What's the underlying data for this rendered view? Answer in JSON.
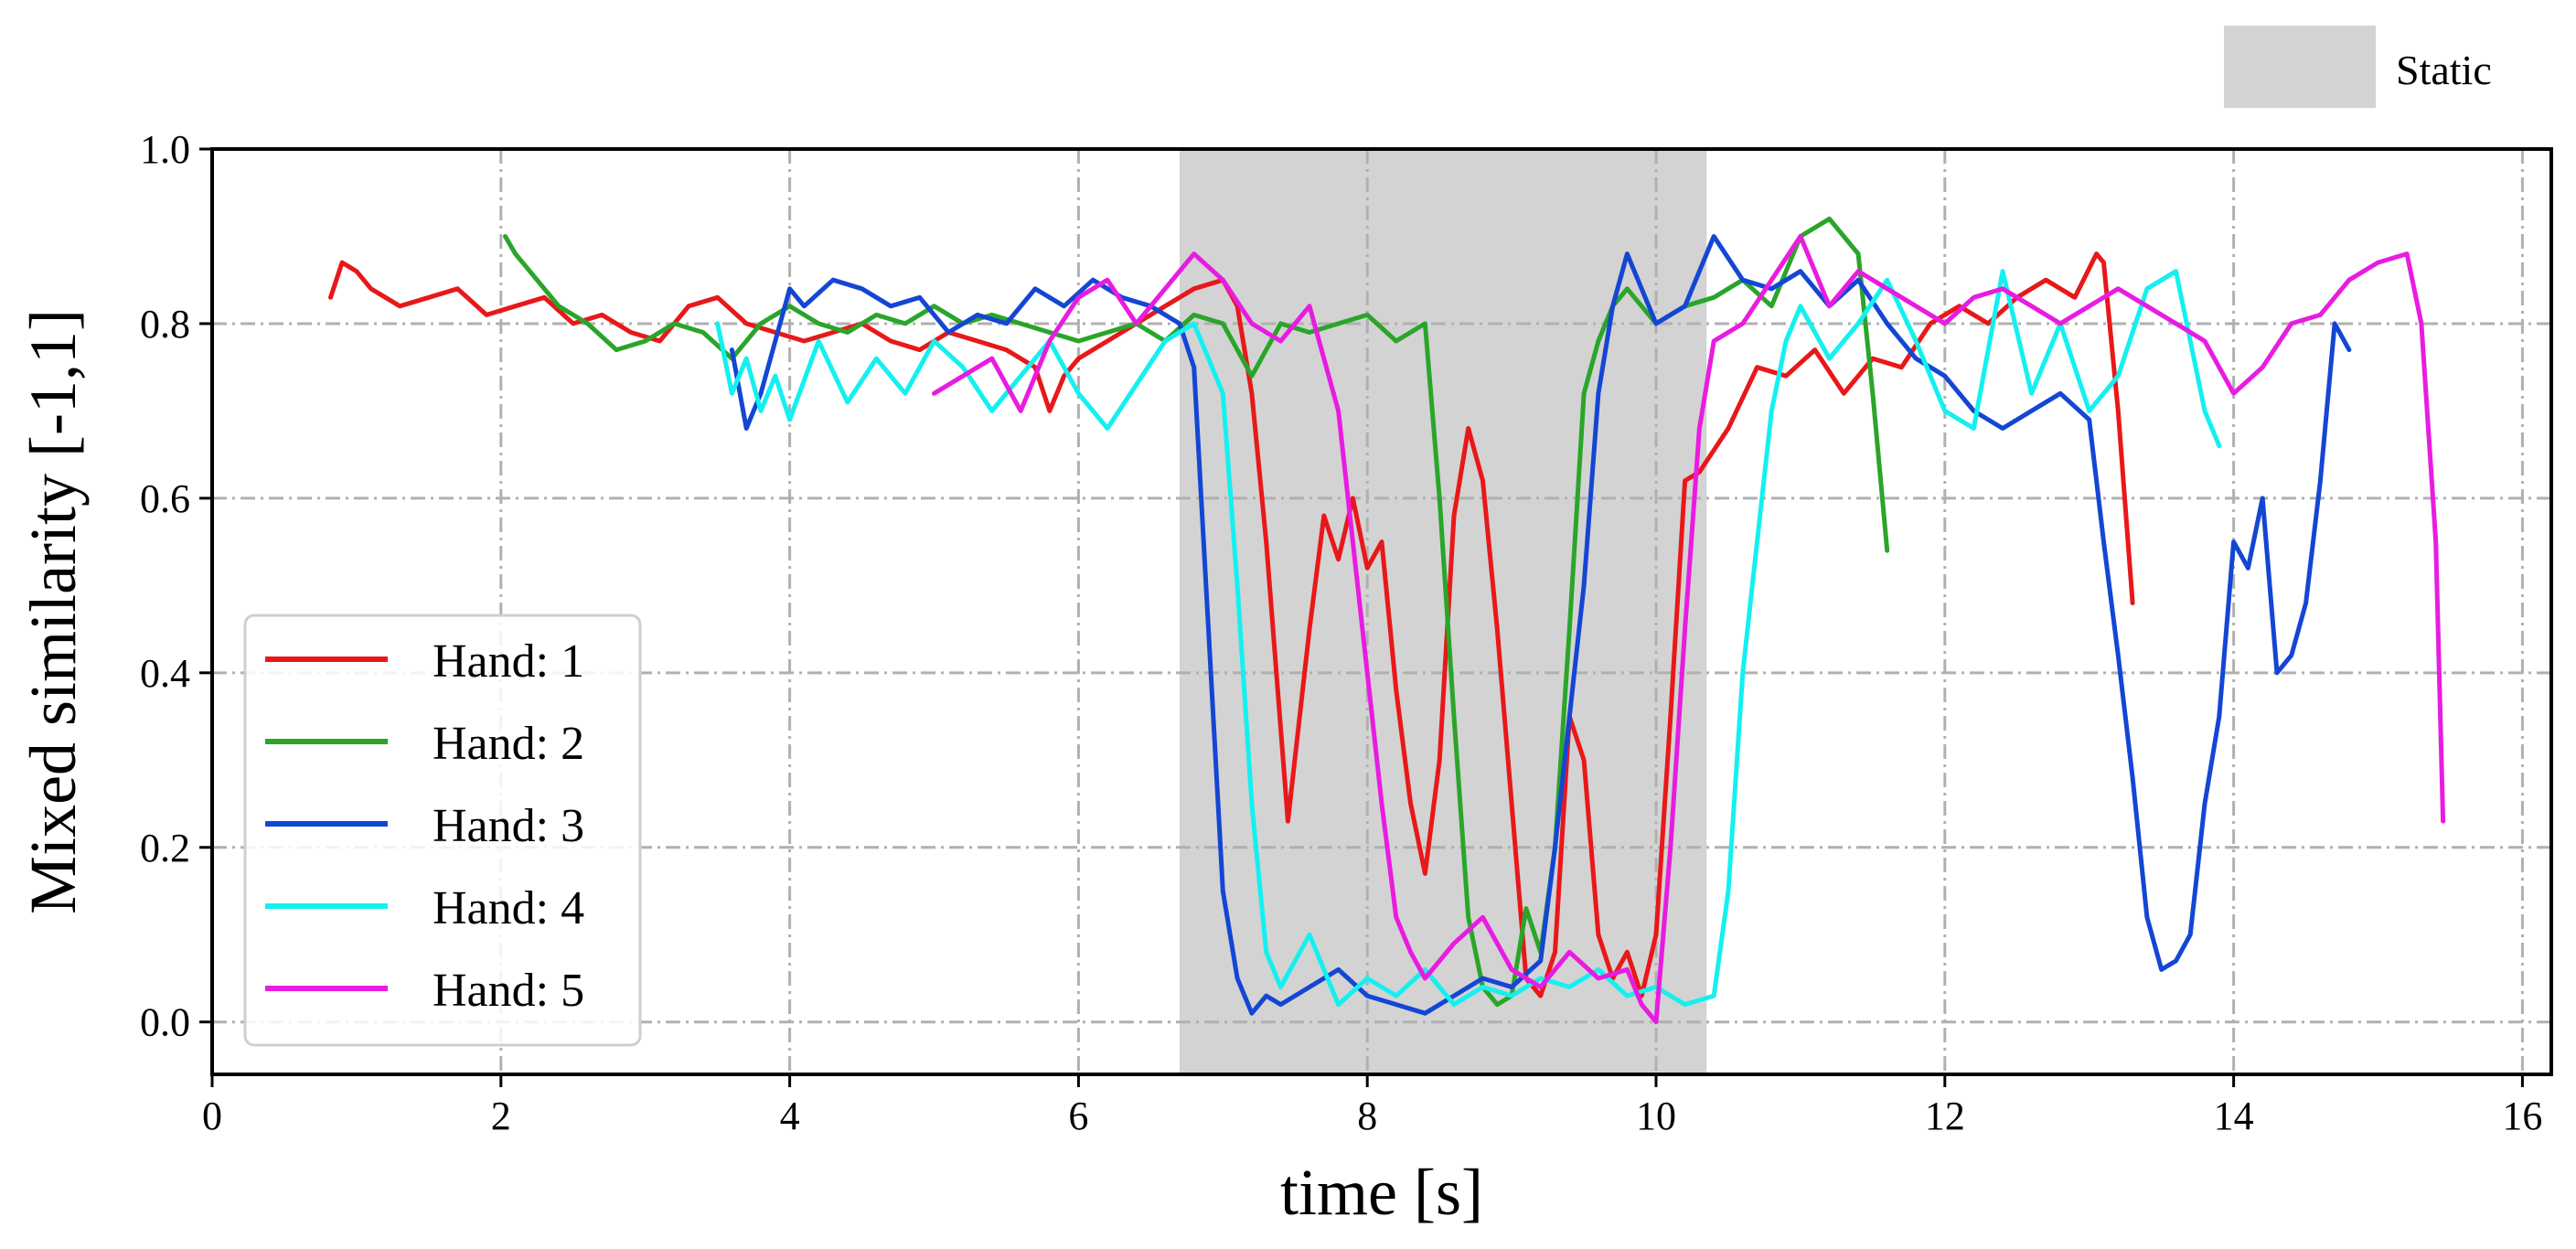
{
  "chart_data": {
    "type": "line",
    "title": "",
    "xlabel": "time [s]",
    "ylabel": "Mixed similarity [-1,1]",
    "xlim": [
      0,
      16.2
    ],
    "ylim": [
      -0.06,
      1.0
    ],
    "xticks": [
      0,
      2,
      4,
      6,
      8,
      10,
      12,
      14,
      16
    ],
    "yticks": [
      0.0,
      0.2,
      0.4,
      0.6,
      0.8,
      1.0
    ],
    "xtick_labels": [
      "0",
      "2",
      "4",
      "6",
      "8",
      "10",
      "12",
      "14",
      "16"
    ],
    "ytick_labels": [
      "0.0",
      "0.2",
      "0.4",
      "0.6",
      "0.8",
      "1.0"
    ],
    "grid": true,
    "legend_position": "lower-left",
    "static_region": {
      "label": "Static",
      "x_start": 6.7,
      "x_end": 10.35,
      "color": "#d3d3d3"
    },
    "series": [
      {
        "name": "Hand: 1",
        "color": "#e8181a",
        "x": [
          0.82,
          0.9,
          1.0,
          1.1,
          1.3,
          1.5,
          1.7,
          1.9,
          2.1,
          2.3,
          2.5,
          2.7,
          2.9,
          3.1,
          3.3,
          3.5,
          3.7,
          3.9,
          4.1,
          4.3,
          4.5,
          4.7,
          4.9,
          5.1,
          5.3,
          5.5,
          5.7,
          5.8,
          5.9,
          6.0,
          6.2,
          6.4,
          6.6,
          6.8,
          7.0,
          7.1,
          7.2,
          7.3,
          7.45,
          7.6,
          7.7,
          7.8,
          7.9,
          8.0,
          8.1,
          8.2,
          8.3,
          8.4,
          8.5,
          8.6,
          8.7,
          8.8,
          8.9,
          9.0,
          9.1,
          9.2,
          9.3,
          9.4,
          9.5,
          9.6,
          9.7,
          9.8,
          9.9,
          10.0,
          10.1,
          10.2,
          10.3,
          10.5,
          10.7,
          10.9,
          11.1,
          11.3,
          11.5,
          11.7,
          11.9,
          12.1,
          12.3,
          12.5,
          12.7,
          12.9,
          13.05,
          13.1,
          13.2,
          13.3
        ],
        "values": [
          0.83,
          0.87,
          0.86,
          0.84,
          0.82,
          0.83,
          0.84,
          0.81,
          0.82,
          0.83,
          0.8,
          0.81,
          0.79,
          0.78,
          0.82,
          0.83,
          0.8,
          0.79,
          0.78,
          0.79,
          0.8,
          0.78,
          0.77,
          0.79,
          0.78,
          0.77,
          0.75,
          0.7,
          0.74,
          0.76,
          0.78,
          0.8,
          0.82,
          0.84,
          0.85,
          0.82,
          0.72,
          0.55,
          0.23,
          0.45,
          0.58,
          0.53,
          0.6,
          0.52,
          0.55,
          0.38,
          0.25,
          0.17,
          0.3,
          0.58,
          0.68,
          0.62,
          0.45,
          0.25,
          0.05,
          0.03,
          0.08,
          0.35,
          0.3,
          0.1,
          0.05,
          0.08,
          0.03,
          0.1,
          0.35,
          0.62,
          0.63,
          0.68,
          0.75,
          0.74,
          0.77,
          0.72,
          0.76,
          0.75,
          0.8,
          0.82,
          0.8,
          0.83,
          0.85,
          0.83,
          0.88,
          0.87,
          0.7,
          0.48
        ]
      },
      {
        "name": "Hand: 2",
        "color": "#2aa52a",
        "x": [
          2.03,
          2.1,
          2.2,
          2.4,
          2.6,
          2.8,
          3.0,
          3.2,
          3.4,
          3.6,
          3.8,
          4.0,
          4.2,
          4.4,
          4.6,
          4.8,
          5.0,
          5.2,
          5.4,
          5.6,
          5.8,
          6.0,
          6.2,
          6.4,
          6.6,
          6.8,
          7.0,
          7.2,
          7.4,
          7.6,
          7.8,
          8.0,
          8.2,
          8.4,
          8.5,
          8.6,
          8.7,
          8.8,
          8.9,
          9.0,
          9.1,
          9.2,
          9.3,
          9.4,
          9.5,
          9.6,
          9.7,
          9.8,
          9.9,
          10.0,
          10.2,
          10.4,
          10.6,
          10.8,
          11.0,
          11.2,
          11.4,
          11.5,
          11.6
        ],
        "values": [
          0.9,
          0.88,
          0.86,
          0.82,
          0.8,
          0.77,
          0.78,
          0.8,
          0.79,
          0.76,
          0.8,
          0.82,
          0.8,
          0.79,
          0.81,
          0.8,
          0.82,
          0.8,
          0.81,
          0.8,
          0.79,
          0.78,
          0.79,
          0.8,
          0.78,
          0.81,
          0.8,
          0.74,
          0.8,
          0.79,
          0.8,
          0.81,
          0.78,
          0.8,
          0.6,
          0.35,
          0.12,
          0.04,
          0.02,
          0.03,
          0.13,
          0.08,
          0.2,
          0.45,
          0.72,
          0.78,
          0.82,
          0.84,
          0.82,
          0.8,
          0.82,
          0.83,
          0.85,
          0.82,
          0.9,
          0.92,
          0.88,
          0.72,
          0.54
        ]
      },
      {
        "name": "Hand: 3",
        "color": "#1446d4",
        "x": [
          3.6,
          3.7,
          3.8,
          3.9,
          4.0,
          4.1,
          4.3,
          4.5,
          4.7,
          4.9,
          5.1,
          5.3,
          5.5,
          5.7,
          5.9,
          6.1,
          6.3,
          6.5,
          6.7,
          6.8,
          6.9,
          7.0,
          7.1,
          7.2,
          7.3,
          7.4,
          7.6,
          7.8,
          8.0,
          8.2,
          8.4,
          8.6,
          8.8,
          9.0,
          9.2,
          9.3,
          9.4,
          9.5,
          9.6,
          9.7,
          9.8,
          9.9,
          10.0,
          10.2,
          10.4,
          10.6,
          10.8,
          11.0,
          11.2,
          11.4,
          11.6,
          11.8,
          12.0,
          12.2,
          12.4,
          12.6,
          12.8,
          13.0,
          13.1,
          13.2,
          13.3,
          13.4,
          13.5,
          13.6,
          13.7,
          13.8,
          13.9,
          14.0,
          14.1,
          14.2,
          14.3,
          14.4,
          14.5,
          14.6,
          14.7,
          14.8
        ],
        "values": [
          0.77,
          0.68,
          0.72,
          0.78,
          0.84,
          0.82,
          0.85,
          0.84,
          0.82,
          0.83,
          0.79,
          0.81,
          0.8,
          0.84,
          0.82,
          0.85,
          0.83,
          0.82,
          0.8,
          0.75,
          0.45,
          0.15,
          0.05,
          0.01,
          0.03,
          0.02,
          0.04,
          0.06,
          0.03,
          0.02,
          0.01,
          0.03,
          0.05,
          0.04,
          0.07,
          0.2,
          0.35,
          0.5,
          0.72,
          0.82,
          0.88,
          0.84,
          0.8,
          0.82,
          0.9,
          0.85,
          0.84,
          0.86,
          0.82,
          0.85,
          0.8,
          0.76,
          0.74,
          0.7,
          0.68,
          0.7,
          0.72,
          0.69,
          0.55,
          0.42,
          0.28,
          0.12,
          0.06,
          0.07,
          0.1,
          0.25,
          0.35,
          0.55,
          0.52,
          0.6,
          0.4,
          0.42,
          0.48,
          0.62,
          0.8,
          0.77
        ]
      },
      {
        "name": "Hand: 4",
        "color": "#14f0f0",
        "x": [
          3.5,
          3.6,
          3.7,
          3.8,
          3.9,
          4.0,
          4.2,
          4.4,
          4.6,
          4.8,
          5.0,
          5.2,
          5.4,
          5.6,
          5.8,
          6.0,
          6.2,
          6.4,
          6.6,
          6.8,
          6.9,
          7.0,
          7.1,
          7.2,
          7.3,
          7.4,
          7.6,
          7.8,
          8.0,
          8.2,
          8.4,
          8.6,
          8.8,
          9.0,
          9.2,
          9.4,
          9.6,
          9.8,
          10.0,
          10.2,
          10.4,
          10.5,
          10.6,
          10.7,
          10.8,
          10.9,
          11.0,
          11.2,
          11.4,
          11.6,
          11.8,
          12.0,
          12.2,
          12.4,
          12.6,
          12.8,
          13.0,
          13.2,
          13.4,
          13.6,
          13.8,
          13.9
        ],
        "values": [
          0.8,
          0.72,
          0.76,
          0.7,
          0.74,
          0.69,
          0.78,
          0.71,
          0.76,
          0.72,
          0.78,
          0.75,
          0.7,
          0.74,
          0.78,
          0.72,
          0.68,
          0.73,
          0.78,
          0.8,
          0.76,
          0.72,
          0.5,
          0.25,
          0.08,
          0.04,
          0.1,
          0.02,
          0.05,
          0.03,
          0.06,
          0.02,
          0.04,
          0.03,
          0.05,
          0.04,
          0.06,
          0.03,
          0.04,
          0.02,
          0.03,
          0.15,
          0.4,
          0.55,
          0.7,
          0.78,
          0.82,
          0.76,
          0.8,
          0.85,
          0.78,
          0.7,
          0.68,
          0.86,
          0.72,
          0.8,
          0.7,
          0.74,
          0.84,
          0.86,
          0.7,
          0.66
        ]
      },
      {
        "name": "Hand: 5",
        "color": "#e81ce0",
        "x": [
          5.0,
          5.2,
          5.4,
          5.6,
          5.8,
          6.0,
          6.2,
          6.4,
          6.6,
          6.8,
          7.0,
          7.2,
          7.4,
          7.6,
          7.8,
          7.9,
          8.0,
          8.1,
          8.2,
          8.3,
          8.4,
          8.6,
          8.8,
          9.0,
          9.2,
          9.4,
          9.6,
          9.8,
          9.9,
          10.0,
          10.1,
          10.2,
          10.3,
          10.4,
          10.6,
          10.8,
          11.0,
          11.2,
          11.4,
          11.6,
          11.8,
          12.0,
          12.2,
          12.4,
          12.6,
          12.8,
          13.0,
          13.2,
          13.4,
          13.6,
          13.8,
          14.0,
          14.2,
          14.4,
          14.6,
          14.8,
          15.0,
          15.2,
          15.3,
          15.4,
          15.45
        ],
        "values": [
          0.72,
          0.74,
          0.76,
          0.7,
          0.78,
          0.83,
          0.85,
          0.8,
          0.84,
          0.88,
          0.85,
          0.8,
          0.78,
          0.82,
          0.7,
          0.55,
          0.4,
          0.25,
          0.12,
          0.08,
          0.05,
          0.09,
          0.12,
          0.06,
          0.04,
          0.08,
          0.05,
          0.06,
          0.02,
          0.0,
          0.2,
          0.45,
          0.68,
          0.78,
          0.8,
          0.85,
          0.9,
          0.82,
          0.86,
          0.84,
          0.82,
          0.8,
          0.83,
          0.84,
          0.82,
          0.8,
          0.82,
          0.84,
          0.82,
          0.8,
          0.78,
          0.72,
          0.75,
          0.8,
          0.81,
          0.85,
          0.87,
          0.88,
          0.8,
          0.55,
          0.23
        ]
      }
    ]
  }
}
